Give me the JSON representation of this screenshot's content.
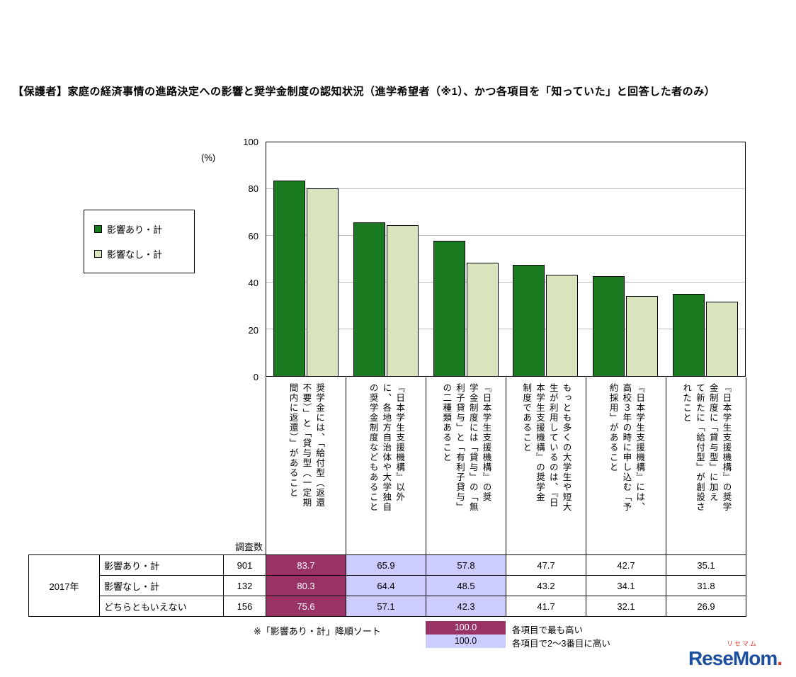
{
  "title": "【保護者】家庭の経済事情の進路決定への影響と奨学金制度の認知状況（進学希望者（※1）、かつ各項目を「知っていた」と回答した者のみ）",
  "chart_data": {
    "type": "bar",
    "y_unit": "(%)",
    "ylim": [
      0,
      100
    ],
    "yticks": [
      0,
      20,
      40,
      60,
      80,
      100
    ],
    "grid": true,
    "legend_position": "left",
    "categories": [
      "奨学金には、「給付型（返還不要）」と「貸与型（一定期間内に返還）」があること",
      "『日本学生支援機構』以外に、各地方自治体や大学独自の奨学金制度などもあること",
      "『日本学生支援機構』の奨学金制度には「貸与」の「無利子貸与」と「有利子貸与」の二種類あること",
      "もっとも多くの大学生や短大生が利用しているのは、『日本学生支援機構』の奨学金制度であること",
      "『日本学生支援機構』には、高校３年の時に申し込む「予約採用」があること",
      "『日本学生支援機構』の奨学金制度に「貸与型」に加えて新たに「給付型」が創設されたこと"
    ],
    "category_columns": [
      [
        "奨学金には、「給付型（返還",
        "不要）」と「貸与型（一定期",
        "間内に返還）」があること"
      ],
      [
        "『日本学生支援機構』以外",
        "に、各地方自治体や大学独自",
        "の奨学金制度などもあること"
      ],
      [
        "『日本学生支援機構』の奨",
        "学金制度には「貸与」の「無",
        "利子貸与」と「有利子貸与」",
        "の二種類あること"
      ],
      [
        "もっとも多くの大学生や短大",
        "生が利用しているのは、『日",
        "本学生支援機構』の奨学金",
        "制度であること"
      ],
      [
        "『日本学生支援機構』には、",
        "高校３年の時に申し込む「予",
        "約採用」があること"
      ],
      [
        "『日本学生支援機構』の奨学",
        "金制度に「貸与型」に加え",
        "て新たに「給付型」が創設さ",
        "れたこと"
      ]
    ],
    "series": [
      {
        "name": "影響あり・計",
        "color": "#1a7a1f",
        "values": [
          83.7,
          65.9,
          57.8,
          47.7,
          42.7,
          35.1
        ]
      },
      {
        "name": "影響なし・計",
        "color": "#d8e4bc",
        "values": [
          80.3,
          64.4,
          48.5,
          43.2,
          34.1,
          31.8
        ]
      }
    ]
  },
  "table": {
    "year_label": "2017年",
    "count_header": "調査数",
    "rows": [
      {
        "label": "影響あり・計",
        "count": "901",
        "values": [
          "83.7",
          "65.9",
          "57.8",
          "47.7",
          "42.7",
          "35.1"
        ],
        "highlights": [
          "top",
          "second",
          "second",
          "",
          "",
          ""
        ]
      },
      {
        "label": "影響なし・計",
        "count": "132",
        "values": [
          "80.3",
          "64.4",
          "48.5",
          "43.2",
          "34.1",
          "31.8"
        ],
        "highlights": [
          "top",
          "second",
          "second",
          "",
          "",
          ""
        ]
      },
      {
        "label": "どちらともいえない",
        "count": "156",
        "values": [
          "75.6",
          "57.1",
          "42.3",
          "41.7",
          "32.1",
          "26.9"
        ],
        "highlights": [
          "top",
          "second",
          "second",
          "",
          "",
          ""
        ]
      }
    ]
  },
  "notes": {
    "sort_note": "※「影響あり・計」降順ソート",
    "legend": [
      {
        "value": "100.0",
        "label": "各項目で最も高い",
        "style": "top"
      },
      {
        "value": "100.0",
        "label": "各項目で2～3番目に高い",
        "style": "second"
      }
    ]
  },
  "colors": {
    "highlight_top": "#993366",
    "highlight_second": "#ccccff",
    "series_1": "#1a7a1f",
    "series_2": "#d8e4bc",
    "logo_blue": "#1d4fa0",
    "logo_red": "#e8382f"
  },
  "logo": {
    "ruby": "リセマム",
    "text": "ReseMom",
    "period": "."
  }
}
